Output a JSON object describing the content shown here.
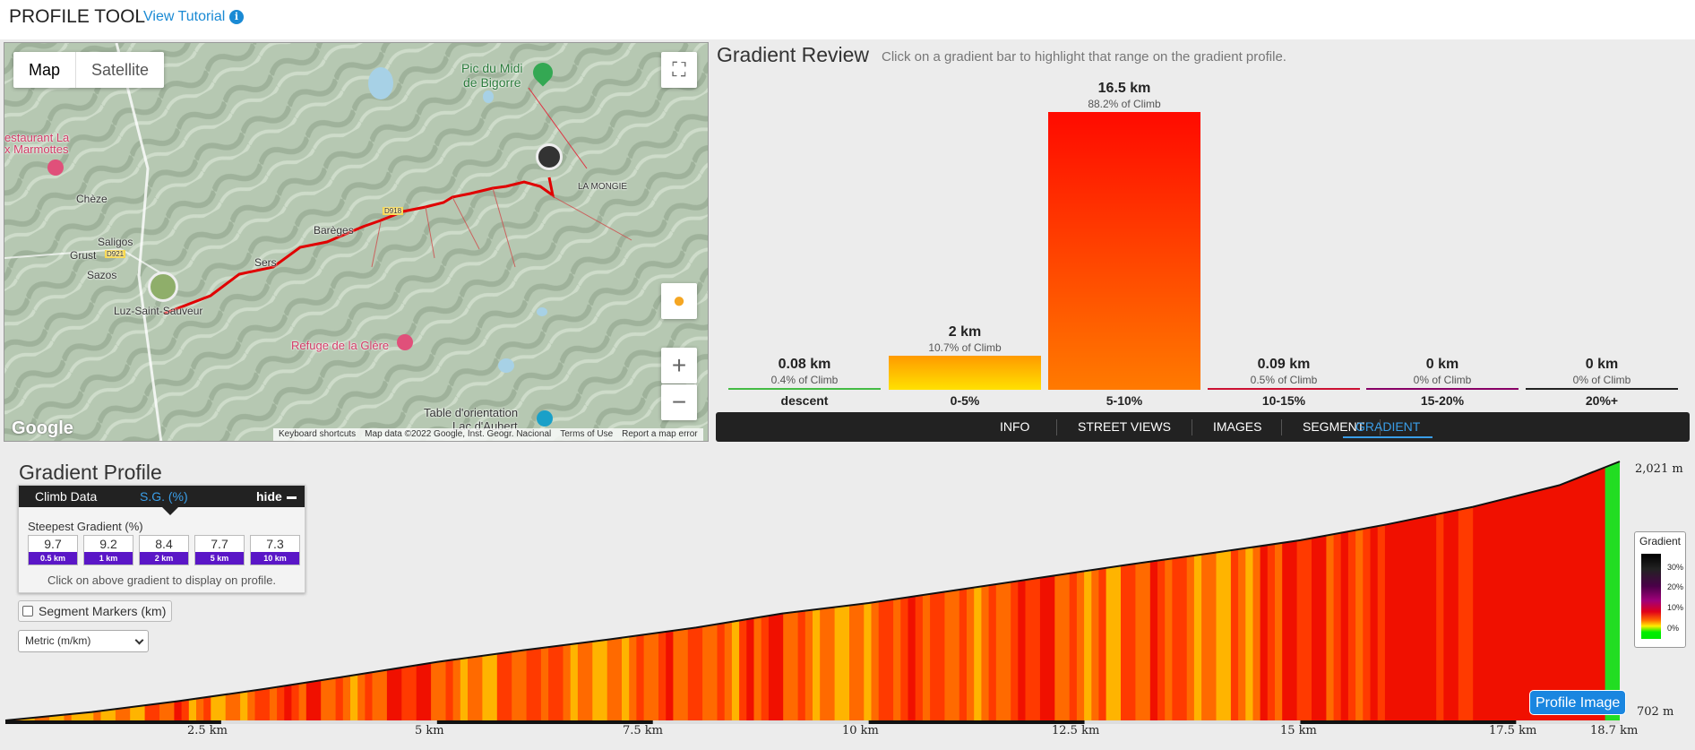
{
  "header": {
    "title": "PROFILE TOOL",
    "tutorial_label": "View Tutorial",
    "info_glyph": "i"
  },
  "map": {
    "type_map": "Map",
    "type_satellite": "Satellite",
    "fullscreen_icon": "⛶",
    "zoom_in": "+",
    "zoom_out": "−",
    "places": {
      "pic": "Pic du Midi",
      "pic2": "de Bigorre",
      "restaurant": "estaurant La",
      "restaurant2": "x Marmottes",
      "cheze": "Chèze",
      "saligos": "Saligos",
      "grust": "Grust",
      "sazos": "Sazos",
      "luz": "Luz-Saint-Sauveur",
      "sers": "Sers",
      "bareges": "Barèges",
      "mongie": "LA MONGIE",
      "refuge": "Refuge de la Glère",
      "table": "Table d'orientation",
      "lac": "Lac d'Aubert",
      "d918": "D918",
      "d921": "D921"
    },
    "footer": [
      "Keyboard shortcuts",
      "Map data ©2022 Google, Inst. Geogr. Nacional",
      "Terms of Use",
      "Report a map error"
    ],
    "google": "Google"
  },
  "review": {
    "title": "Gradient Review",
    "subtitle": "Click on a gradient bar to highlight that range on the gradient profile.",
    "bars": [
      {
        "km": "0.08 km",
        "pct": "0.4% of Climb",
        "cat": "descent",
        "share": 0.4,
        "color": "#44bb44"
      },
      {
        "km": "2 km",
        "pct": "10.7% of Climb",
        "cat": "0-5%",
        "share": 10.7,
        "color": "#ffd800"
      },
      {
        "km": "16.5 km",
        "pct": "88.2% of Climb",
        "cat": "5-10%",
        "share": 88.2,
        "color": "#ff2a00"
      },
      {
        "km": "0.09 km",
        "pct": "0.5% of Climb",
        "cat": "10-15%",
        "share": 0.5,
        "color": "#cc1133"
      },
      {
        "km": "0 km",
        "pct": "0% of Climb",
        "cat": "15-20%",
        "share": 0,
        "color": "#880066"
      },
      {
        "km": "0 km",
        "pct": "0% of Climb",
        "cat": "20%+",
        "share": 0,
        "color": "#222222"
      }
    ]
  },
  "nav": {
    "info": "INFO",
    "street": "STREET VIEWS",
    "images": "IMAGES",
    "segment": "SEGMENT",
    "gradient": "GRADIENT"
  },
  "profile": {
    "title": "Gradient Profile",
    "tab_climb": "Climb Data",
    "tab_sg": "S.G. (%)",
    "hide": "hide",
    "steepest_label": "Steepest Gradient (%)",
    "steepest": [
      {
        "value": "9.7",
        "dist": "0.5 km"
      },
      {
        "value": "9.2",
        "dist": "1 km"
      },
      {
        "value": "8.4",
        "dist": "2 km"
      },
      {
        "value": "7.7",
        "dist": "5 km"
      },
      {
        "value": "7.3",
        "dist": "10 km"
      }
    ],
    "hint": "Click on above gradient to display on profile.",
    "segment_markers": "Segment Markers (km)",
    "unit": "Metric (m/km)",
    "elev_top": "2,021 m",
    "elev_bottom": "702 m",
    "x_ticks": [
      "2.5 km",
      "5 km",
      "7.5 km",
      "10 km",
      "12.5 km",
      "15 km",
      "17.5 km",
      "18.7 km"
    ],
    "legend_title": "Gradient",
    "legend_ticks": [
      "30%",
      "20%",
      "10%",
      "0%"
    ],
    "profile_image_button": "Profile Image"
  },
  "chart_data": {
    "type": "area",
    "xlabel": "",
    "ylabel": "",
    "xlim": [
      0,
      18.7
    ],
    "ylim": [
      702,
      2021
    ],
    "series": [
      {
        "x": [
          0,
          1,
          2,
          3,
          4,
          5,
          6,
          7,
          8,
          9,
          10,
          11,
          12,
          13,
          14,
          15,
          16,
          17,
          18,
          18.7
        ],
        "y": [
          702,
          745,
          800,
          862,
          930,
          1000,
          1060,
          1115,
          1175,
          1247,
          1300,
          1365,
          1430,
          1495,
          1556,
          1620,
          1700,
          1790,
          1900,
          2021
        ]
      }
    ]
  }
}
